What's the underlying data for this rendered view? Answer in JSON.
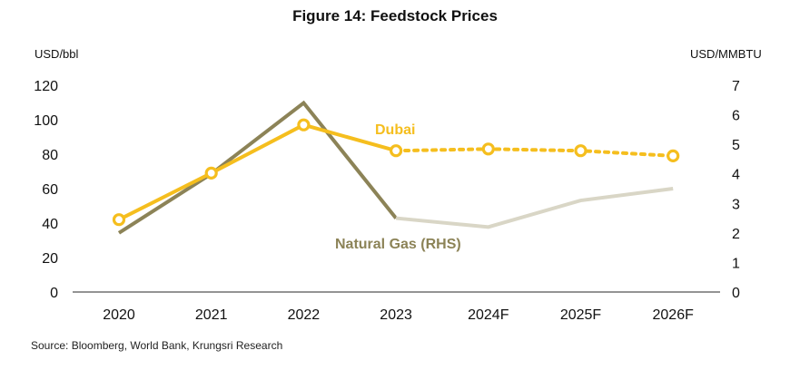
{
  "chart_data": {
    "type": "line",
    "title": "Figure 14: Feedstock Prices",
    "categories": [
      "2020",
      "2021",
      "2022",
      "2023",
      "2024F",
      "2025F",
      "2026F"
    ],
    "y_left_label": "USD/bbl",
    "y_right_label": "USD/MMBTU",
    "y_left_ticks": [
      "0",
      "20",
      "40",
      "60",
      "80",
      "100",
      "120"
    ],
    "y_right_ticks": [
      "0",
      "1",
      "2",
      "3",
      "4",
      "5",
      "6",
      "7"
    ],
    "y_left_range": [
      0,
      120
    ],
    "y_right_range": [
      0,
      7
    ],
    "grid": false,
    "series": [
      {
        "name": "Dubai",
        "axis": "left",
        "color": "#F5BE1E",
        "values": [
          42,
          69,
          97,
          82,
          83,
          82,
          79
        ],
        "forecast_from_index": 3,
        "markers": "open-circle"
      },
      {
        "name": "Natural Gas (RHS)",
        "axis": "right",
        "color": "#8C8357",
        "forecast_color": "#D9D6C6",
        "values": [
          2.0,
          4.0,
          6.4,
          2.5,
          2.2,
          3.1,
          3.5
        ],
        "forecast_from_index": 3
      }
    ]
  },
  "source": "Source: Bloomberg, World Bank, Krungsri Research"
}
